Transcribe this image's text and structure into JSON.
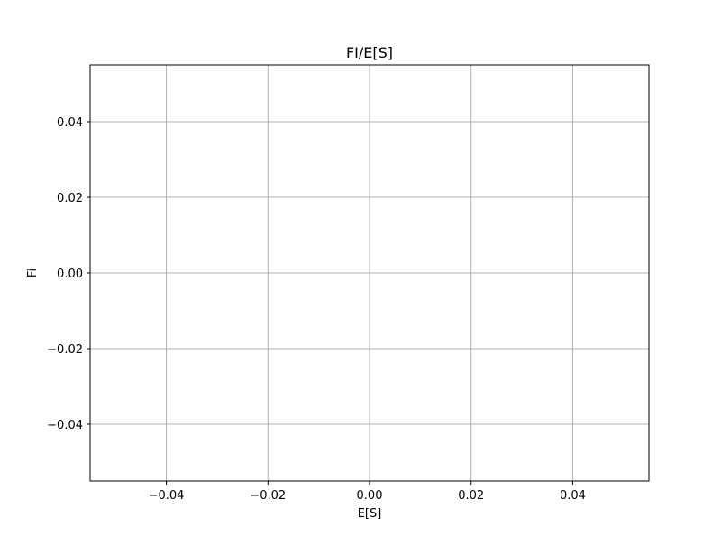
{
  "chart_data": {
    "type": "line",
    "title": "FI/E[S]",
    "xlabel": "E[S]",
    "ylabel": "Fi",
    "xlim": [
      -0.055,
      0.055
    ],
    "ylim": [
      -0.055,
      0.055
    ],
    "x_ticks": [
      -0.04,
      -0.02,
      0.0,
      0.02,
      0.04
    ],
    "y_ticks": [
      -0.04,
      -0.02,
      0.0,
      0.02,
      0.04
    ],
    "x_tick_labels": [
      "−0.04",
      "−0.02",
      "0.00",
      "0.02",
      "0.04"
    ],
    "y_tick_labels": [
      "−0.04",
      "−0.02",
      "0.00",
      "0.02",
      "0.04"
    ],
    "grid": true,
    "grid_color": "#b0b0b0",
    "series": [
      {
        "x": [],
        "y": []
      }
    ]
  }
}
